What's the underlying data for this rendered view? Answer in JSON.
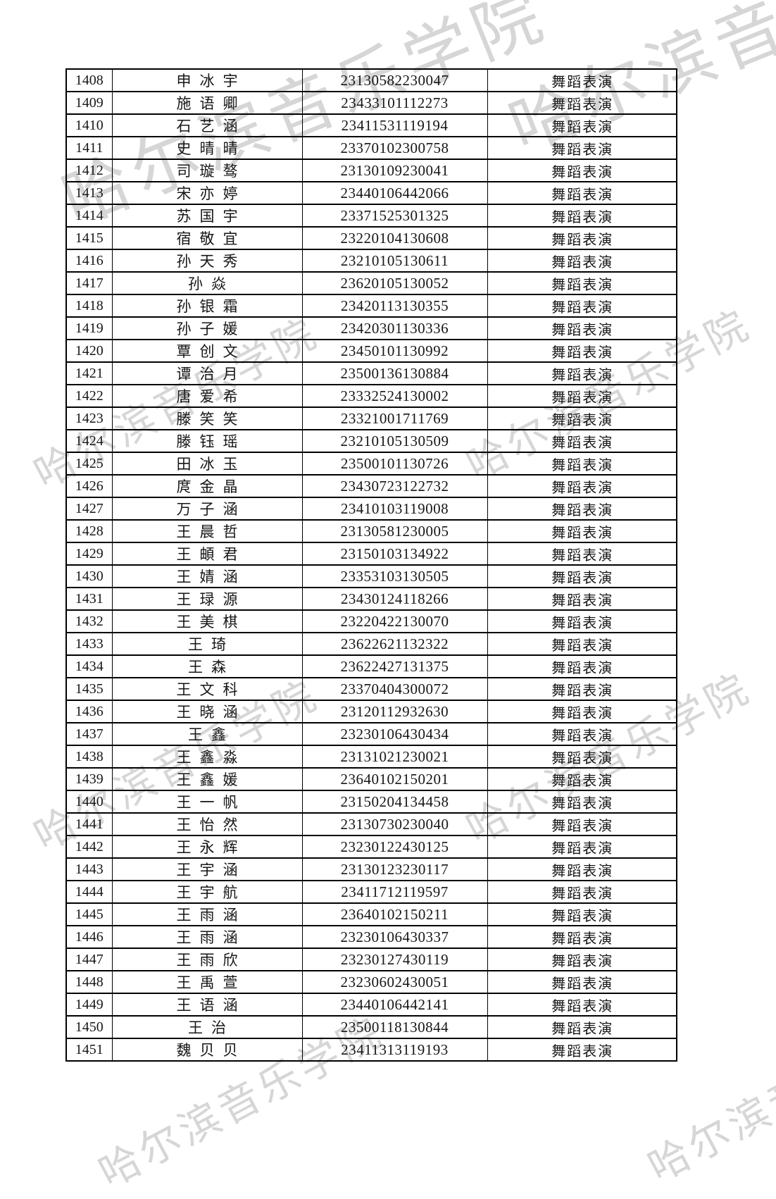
{
  "watermark": {
    "text": "哈尔滨音乐学院",
    "color": "#d6d6d6"
  },
  "table": {
    "major_label": "舞蹈表演",
    "rows": [
      {
        "no": "1408",
        "name": "申冰宇",
        "exam_id": "23130582230047",
        "major": "舞蹈表演"
      },
      {
        "no": "1409",
        "name": "施语卿",
        "exam_id": "23433101112273",
        "major": "舞蹈表演"
      },
      {
        "no": "1410",
        "name": "石艺涵",
        "exam_id": "23411531119194",
        "major": "舞蹈表演"
      },
      {
        "no": "1411",
        "name": "史晴晴",
        "exam_id": "23370102300758",
        "major": "舞蹈表演"
      },
      {
        "no": "1412",
        "name": "司璇骜",
        "exam_id": "23130109230041",
        "major": "舞蹈表演"
      },
      {
        "no": "1413",
        "name": "宋亦婷",
        "exam_id": "23440106442066",
        "major": "舞蹈表演"
      },
      {
        "no": "1414",
        "name": "苏国宇",
        "exam_id": "23371525301325",
        "major": "舞蹈表演"
      },
      {
        "no": "1415",
        "name": "宿敬宜",
        "exam_id": "23220104130608",
        "major": "舞蹈表演"
      },
      {
        "no": "1416",
        "name": "孙天秀",
        "exam_id": "23210105130611",
        "major": "舞蹈表演"
      },
      {
        "no": "1417",
        "name": "孙焱",
        "exam_id": "23620105130052",
        "major": "舞蹈表演"
      },
      {
        "no": "1418",
        "name": "孙银霜",
        "exam_id": "23420113130355",
        "major": "舞蹈表演"
      },
      {
        "no": "1419",
        "name": "孙子媛",
        "exam_id": "23420301130336",
        "major": "舞蹈表演"
      },
      {
        "no": "1420",
        "name": "覃创文",
        "exam_id": "23450101130992",
        "major": "舞蹈表演"
      },
      {
        "no": "1421",
        "name": "谭治月",
        "exam_id": "23500136130884",
        "major": "舞蹈表演"
      },
      {
        "no": "1422",
        "name": "唐爱希",
        "exam_id": "23332524130002",
        "major": "舞蹈表演"
      },
      {
        "no": "1423",
        "name": "滕笑笑",
        "exam_id": "23321001711769",
        "major": "舞蹈表演"
      },
      {
        "no": "1424",
        "name": "滕钰瑶",
        "exam_id": "23210105130509",
        "major": "舞蹈表演"
      },
      {
        "no": "1425",
        "name": "田冰玉",
        "exam_id": "23500101130726",
        "major": "舞蹈表演"
      },
      {
        "no": "1426",
        "name": "庹金晶",
        "exam_id": "23430723122732",
        "major": "舞蹈表演"
      },
      {
        "no": "1427",
        "name": "万子涵",
        "exam_id": "23410103119008",
        "major": "舞蹈表演"
      },
      {
        "no": "1428",
        "name": "王晨哲",
        "exam_id": "23130581230005",
        "major": "舞蹈表演"
      },
      {
        "no": "1429",
        "name": "王頔君",
        "exam_id": "23150103134922",
        "major": "舞蹈表演"
      },
      {
        "no": "1430",
        "name": "王婧涵",
        "exam_id": "23353103130505",
        "major": "舞蹈表演"
      },
      {
        "no": "1431",
        "name": "王琭源",
        "exam_id": "23430124118266",
        "major": "舞蹈表演"
      },
      {
        "no": "1432",
        "name": "王美棋",
        "exam_id": "23220422130070",
        "major": "舞蹈表演"
      },
      {
        "no": "1433",
        "name": "王琦",
        "exam_id": "23622621132322",
        "major": "舞蹈表演"
      },
      {
        "no": "1434",
        "name": "王森",
        "exam_id": "23622427131375",
        "major": "舞蹈表演"
      },
      {
        "no": "1435",
        "name": "王文科",
        "exam_id": "23370404300072",
        "major": "舞蹈表演"
      },
      {
        "no": "1436",
        "name": "王晓涵",
        "exam_id": "23120112932630",
        "major": "舞蹈表演"
      },
      {
        "no": "1437",
        "name": "王鑫",
        "exam_id": "23230106430434",
        "major": "舞蹈表演"
      },
      {
        "no": "1438",
        "name": "王鑫淼",
        "exam_id": "23131021230021",
        "major": "舞蹈表演"
      },
      {
        "no": "1439",
        "name": "王鑫媛",
        "exam_id": "23640102150201",
        "major": "舞蹈表演"
      },
      {
        "no": "1440",
        "name": "王一帆",
        "exam_id": "23150204134458",
        "major": "舞蹈表演"
      },
      {
        "no": "1441",
        "name": "王怡然",
        "exam_id": "23130730230040",
        "major": "舞蹈表演"
      },
      {
        "no": "1442",
        "name": "王永辉",
        "exam_id": "23230122430125",
        "major": "舞蹈表演"
      },
      {
        "no": "1443",
        "name": "王宇涵",
        "exam_id": "23130123230117",
        "major": "舞蹈表演"
      },
      {
        "no": "1444",
        "name": "王宇航",
        "exam_id": "23411712119597",
        "major": "舞蹈表演"
      },
      {
        "no": "1445",
        "name": "王雨涵",
        "exam_id": "23640102150211",
        "major": "舞蹈表演"
      },
      {
        "no": "1446",
        "name": "王雨涵",
        "exam_id": "23230106430337",
        "major": "舞蹈表演"
      },
      {
        "no": "1447",
        "name": "王雨欣",
        "exam_id": "23230127430119",
        "major": "舞蹈表演"
      },
      {
        "no": "1448",
        "name": "王禹萱",
        "exam_id": "23230602430051",
        "major": "舞蹈表演"
      },
      {
        "no": "1449",
        "name": "王语涵",
        "exam_id": "23440106442141",
        "major": "舞蹈表演"
      },
      {
        "no": "1450",
        "name": "王治",
        "exam_id": "23500118130844",
        "major": "舞蹈表演"
      },
      {
        "no": "1451",
        "name": "魏贝贝",
        "exam_id": "23411313119193",
        "major": "舞蹈表演"
      }
    ]
  }
}
